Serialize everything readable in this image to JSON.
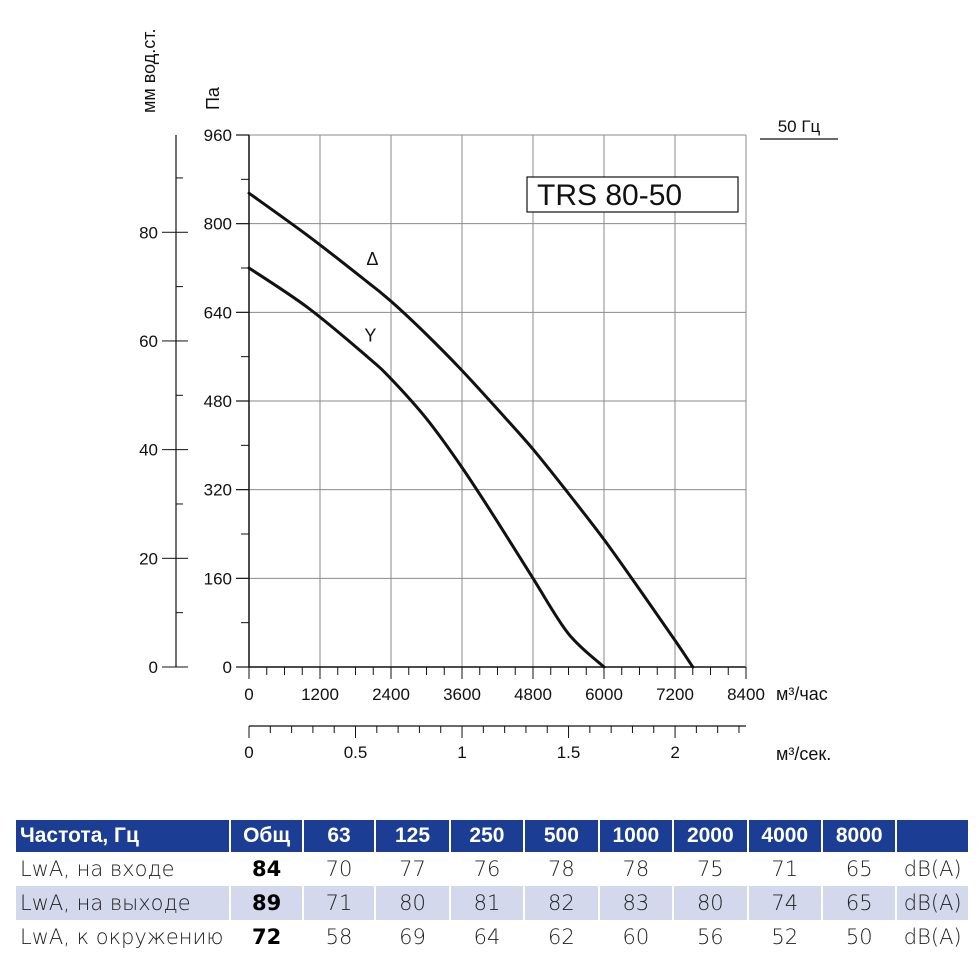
{
  "chart_data": {
    "type": "line",
    "title": "TRS 80-50",
    "frequency_label": "50 Гц",
    "x_axis": {
      "label": "м³/час",
      "range": [
        0,
        8400
      ],
      "ticks": [
        "0",
        "1200",
        "2400",
        "3600",
        "4800",
        "6000",
        "7200",
        "8400"
      ]
    },
    "x2_axis": {
      "label": "м³/сек.",
      "range": [
        0,
        2.333
      ],
      "ticks": [
        {
          "value": 0,
          "label": "0"
        },
        {
          "value": 0.5,
          "label": "0.5"
        },
        {
          "value": 1,
          "label": "1"
        },
        {
          "value": 1.5,
          "label": "1.5"
        },
        {
          "value": 2,
          "label": "2"
        }
      ]
    },
    "y_axis": {
      "label": "Па",
      "range": [
        0,
        960
      ],
      "ticks": [
        "0",
        "160",
        "320",
        "480",
        "640",
        "800",
        "960"
      ]
    },
    "y2_axis": {
      "label": "мм вод.ст.",
      "range": [
        0,
        97.9
      ],
      "ticks": [
        {
          "value": 0,
          "label": "0"
        },
        {
          "value": 20,
          "label": "20"
        },
        {
          "value": 40,
          "label": "40"
        },
        {
          "value": 60,
          "label": "60"
        },
        {
          "value": 80,
          "label": "80"
        }
      ]
    },
    "grid": true,
    "series": [
      {
        "name": "Δ",
        "x": [
          0,
          1000,
          2000,
          2400,
          3000,
          3600,
          4200,
          4800,
          5400,
          6000,
          6600,
          7200,
          7500
        ],
        "y": [
          855,
          778,
          695,
          660,
          600,
          535,
          465,
          393,
          313,
          230,
          140,
          48,
          0
        ]
      },
      {
        "name": "Y",
        "x": [
          0,
          1000,
          2000,
          2400,
          3000,
          3600,
          4200,
          4800,
          5400,
          6000
        ],
        "y": [
          720,
          648,
          560,
          520,
          448,
          360,
          262,
          160,
          60,
          0
        ]
      }
    ]
  },
  "noise_table": {
    "headers": [
      "Частота, Гц",
      "Общ",
      "63",
      "125",
      "250",
      "500",
      "1000",
      "2000",
      "4000",
      "8000",
      ""
    ],
    "rows": [
      {
        "label": "LwA, на входе",
        "total": "84",
        "values": [
          "70",
          "77",
          "76",
          "78",
          "78",
          "75",
          "71",
          "65"
        ],
        "unit": "dB(A)"
      },
      {
        "label": "LwA, на выходе",
        "total": "89",
        "values": [
          "71",
          "80",
          "81",
          "82",
          "83",
          "80",
          "74",
          "65"
        ],
        "unit": "dB(A)"
      },
      {
        "label": "LwA, к окружению",
        "total": "72",
        "values": [
          "58",
          "69",
          "64",
          "62",
          "60",
          "56",
          "52",
          "50"
        ],
        "unit": "dB(A)"
      }
    ]
  }
}
